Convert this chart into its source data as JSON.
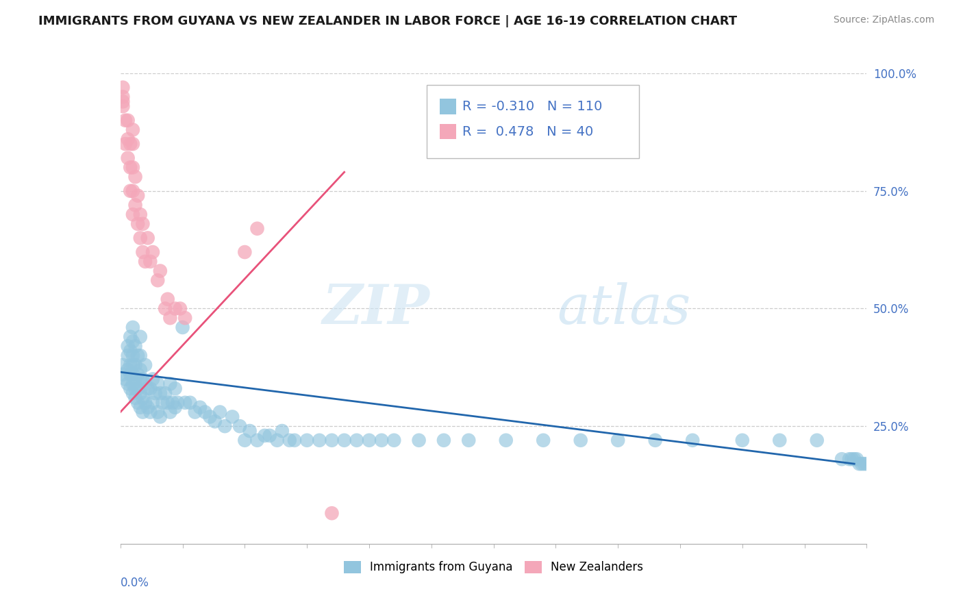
{
  "title": "IMMIGRANTS FROM GUYANA VS NEW ZEALANDER IN LABOR FORCE | AGE 16-19 CORRELATION CHART",
  "source": "Source: ZipAtlas.com",
  "xmin": 0.0,
  "xmax": 0.3,
  "ymin": 0.0,
  "ymax": 1.0,
  "legend_label_blue": "Immigrants from Guyana",
  "legend_label_pink": "New Zealanders",
  "R_blue": -0.31,
  "N_blue": 110,
  "R_pink": 0.478,
  "N_pink": 40,
  "blue_color": "#92c5de",
  "pink_color": "#f4a7b9",
  "blue_line_color": "#2166ac",
  "pink_line_color": "#e8527a",
  "watermark_zip": "ZIP",
  "watermark_atlas": "atlas",
  "blue_trend_x": [
    0.0,
    0.295
  ],
  "blue_trend_y": [
    0.365,
    0.17
  ],
  "pink_trend_x": [
    0.0,
    0.09
  ],
  "pink_trend_y": [
    0.28,
    0.79
  ],
  "blue_pts_x": [
    0.001,
    0.001,
    0.002,
    0.003,
    0.003,
    0.003,
    0.003,
    0.004,
    0.004,
    0.004,
    0.004,
    0.004,
    0.005,
    0.005,
    0.005,
    0.005,
    0.005,
    0.005,
    0.005,
    0.006,
    0.006,
    0.006,
    0.006,
    0.006,
    0.007,
    0.007,
    0.007,
    0.007,
    0.008,
    0.008,
    0.008,
    0.008,
    0.008,
    0.008,
    0.009,
    0.009,
    0.009,
    0.01,
    0.01,
    0.01,
    0.011,
    0.011,
    0.012,
    0.012,
    0.013,
    0.013,
    0.014,
    0.015,
    0.015,
    0.016,
    0.016,
    0.017,
    0.018,
    0.019,
    0.02,
    0.02,
    0.021,
    0.022,
    0.022,
    0.023,
    0.025,
    0.026,
    0.028,
    0.03,
    0.032,
    0.034,
    0.036,
    0.038,
    0.04,
    0.042,
    0.045,
    0.048,
    0.05,
    0.052,
    0.055,
    0.058,
    0.06,
    0.063,
    0.065,
    0.068,
    0.07,
    0.075,
    0.08,
    0.085,
    0.09,
    0.095,
    0.1,
    0.105,
    0.11,
    0.12,
    0.13,
    0.14,
    0.155,
    0.17,
    0.185,
    0.2,
    0.215,
    0.23,
    0.25,
    0.265,
    0.28,
    0.29,
    0.293,
    0.294,
    0.295,
    0.296,
    0.297,
    0.298,
    0.299,
    0.3
  ],
  "blue_pts_y": [
    0.36,
    0.38,
    0.35,
    0.34,
    0.37,
    0.4,
    0.42,
    0.33,
    0.36,
    0.38,
    0.41,
    0.44,
    0.32,
    0.34,
    0.36,
    0.38,
    0.4,
    0.43,
    0.46,
    0.31,
    0.33,
    0.35,
    0.38,
    0.42,
    0.3,
    0.33,
    0.36,
    0.4,
    0.29,
    0.32,
    0.35,
    0.37,
    0.4,
    0.44,
    0.28,
    0.31,
    0.35,
    0.3,
    0.34,
    0.38,
    0.29,
    0.33,
    0.28,
    0.33,
    0.3,
    0.35,
    0.32,
    0.28,
    0.34,
    0.27,
    0.32,
    0.3,
    0.32,
    0.3,
    0.28,
    0.34,
    0.3,
    0.29,
    0.33,
    0.3,
    0.46,
    0.3,
    0.3,
    0.28,
    0.29,
    0.28,
    0.27,
    0.26,
    0.28,
    0.25,
    0.27,
    0.25,
    0.22,
    0.24,
    0.22,
    0.23,
    0.23,
    0.22,
    0.24,
    0.22,
    0.22,
    0.22,
    0.22,
    0.22,
    0.22,
    0.22,
    0.22,
    0.22,
    0.22,
    0.22,
    0.22,
    0.22,
    0.22,
    0.22,
    0.22,
    0.22,
    0.22,
    0.22,
    0.22,
    0.22,
    0.22,
    0.18,
    0.18,
    0.18,
    0.18,
    0.18,
    0.17,
    0.17,
    0.17,
    0.17
  ],
  "pink_pts_x": [
    0.001,
    0.001,
    0.001,
    0.001,
    0.002,
    0.002,
    0.003,
    0.003,
    0.003,
    0.004,
    0.004,
    0.004,
    0.005,
    0.005,
    0.005,
    0.005,
    0.005,
    0.006,
    0.006,
    0.007,
    0.007,
    0.008,
    0.008,
    0.009,
    0.009,
    0.01,
    0.011,
    0.012,
    0.013,
    0.015,
    0.016,
    0.018,
    0.019,
    0.02,
    0.022,
    0.024,
    0.026,
    0.05,
    0.055,
    0.085
  ],
  "pink_pts_y": [
    0.93,
    0.94,
    0.95,
    0.97,
    0.85,
    0.9,
    0.82,
    0.86,
    0.9,
    0.75,
    0.8,
    0.85,
    0.7,
    0.75,
    0.8,
    0.85,
    0.88,
    0.72,
    0.78,
    0.68,
    0.74,
    0.65,
    0.7,
    0.62,
    0.68,
    0.6,
    0.65,
    0.6,
    0.62,
    0.56,
    0.58,
    0.5,
    0.52,
    0.48,
    0.5,
    0.5,
    0.48,
    0.62,
    0.67,
    0.065
  ]
}
